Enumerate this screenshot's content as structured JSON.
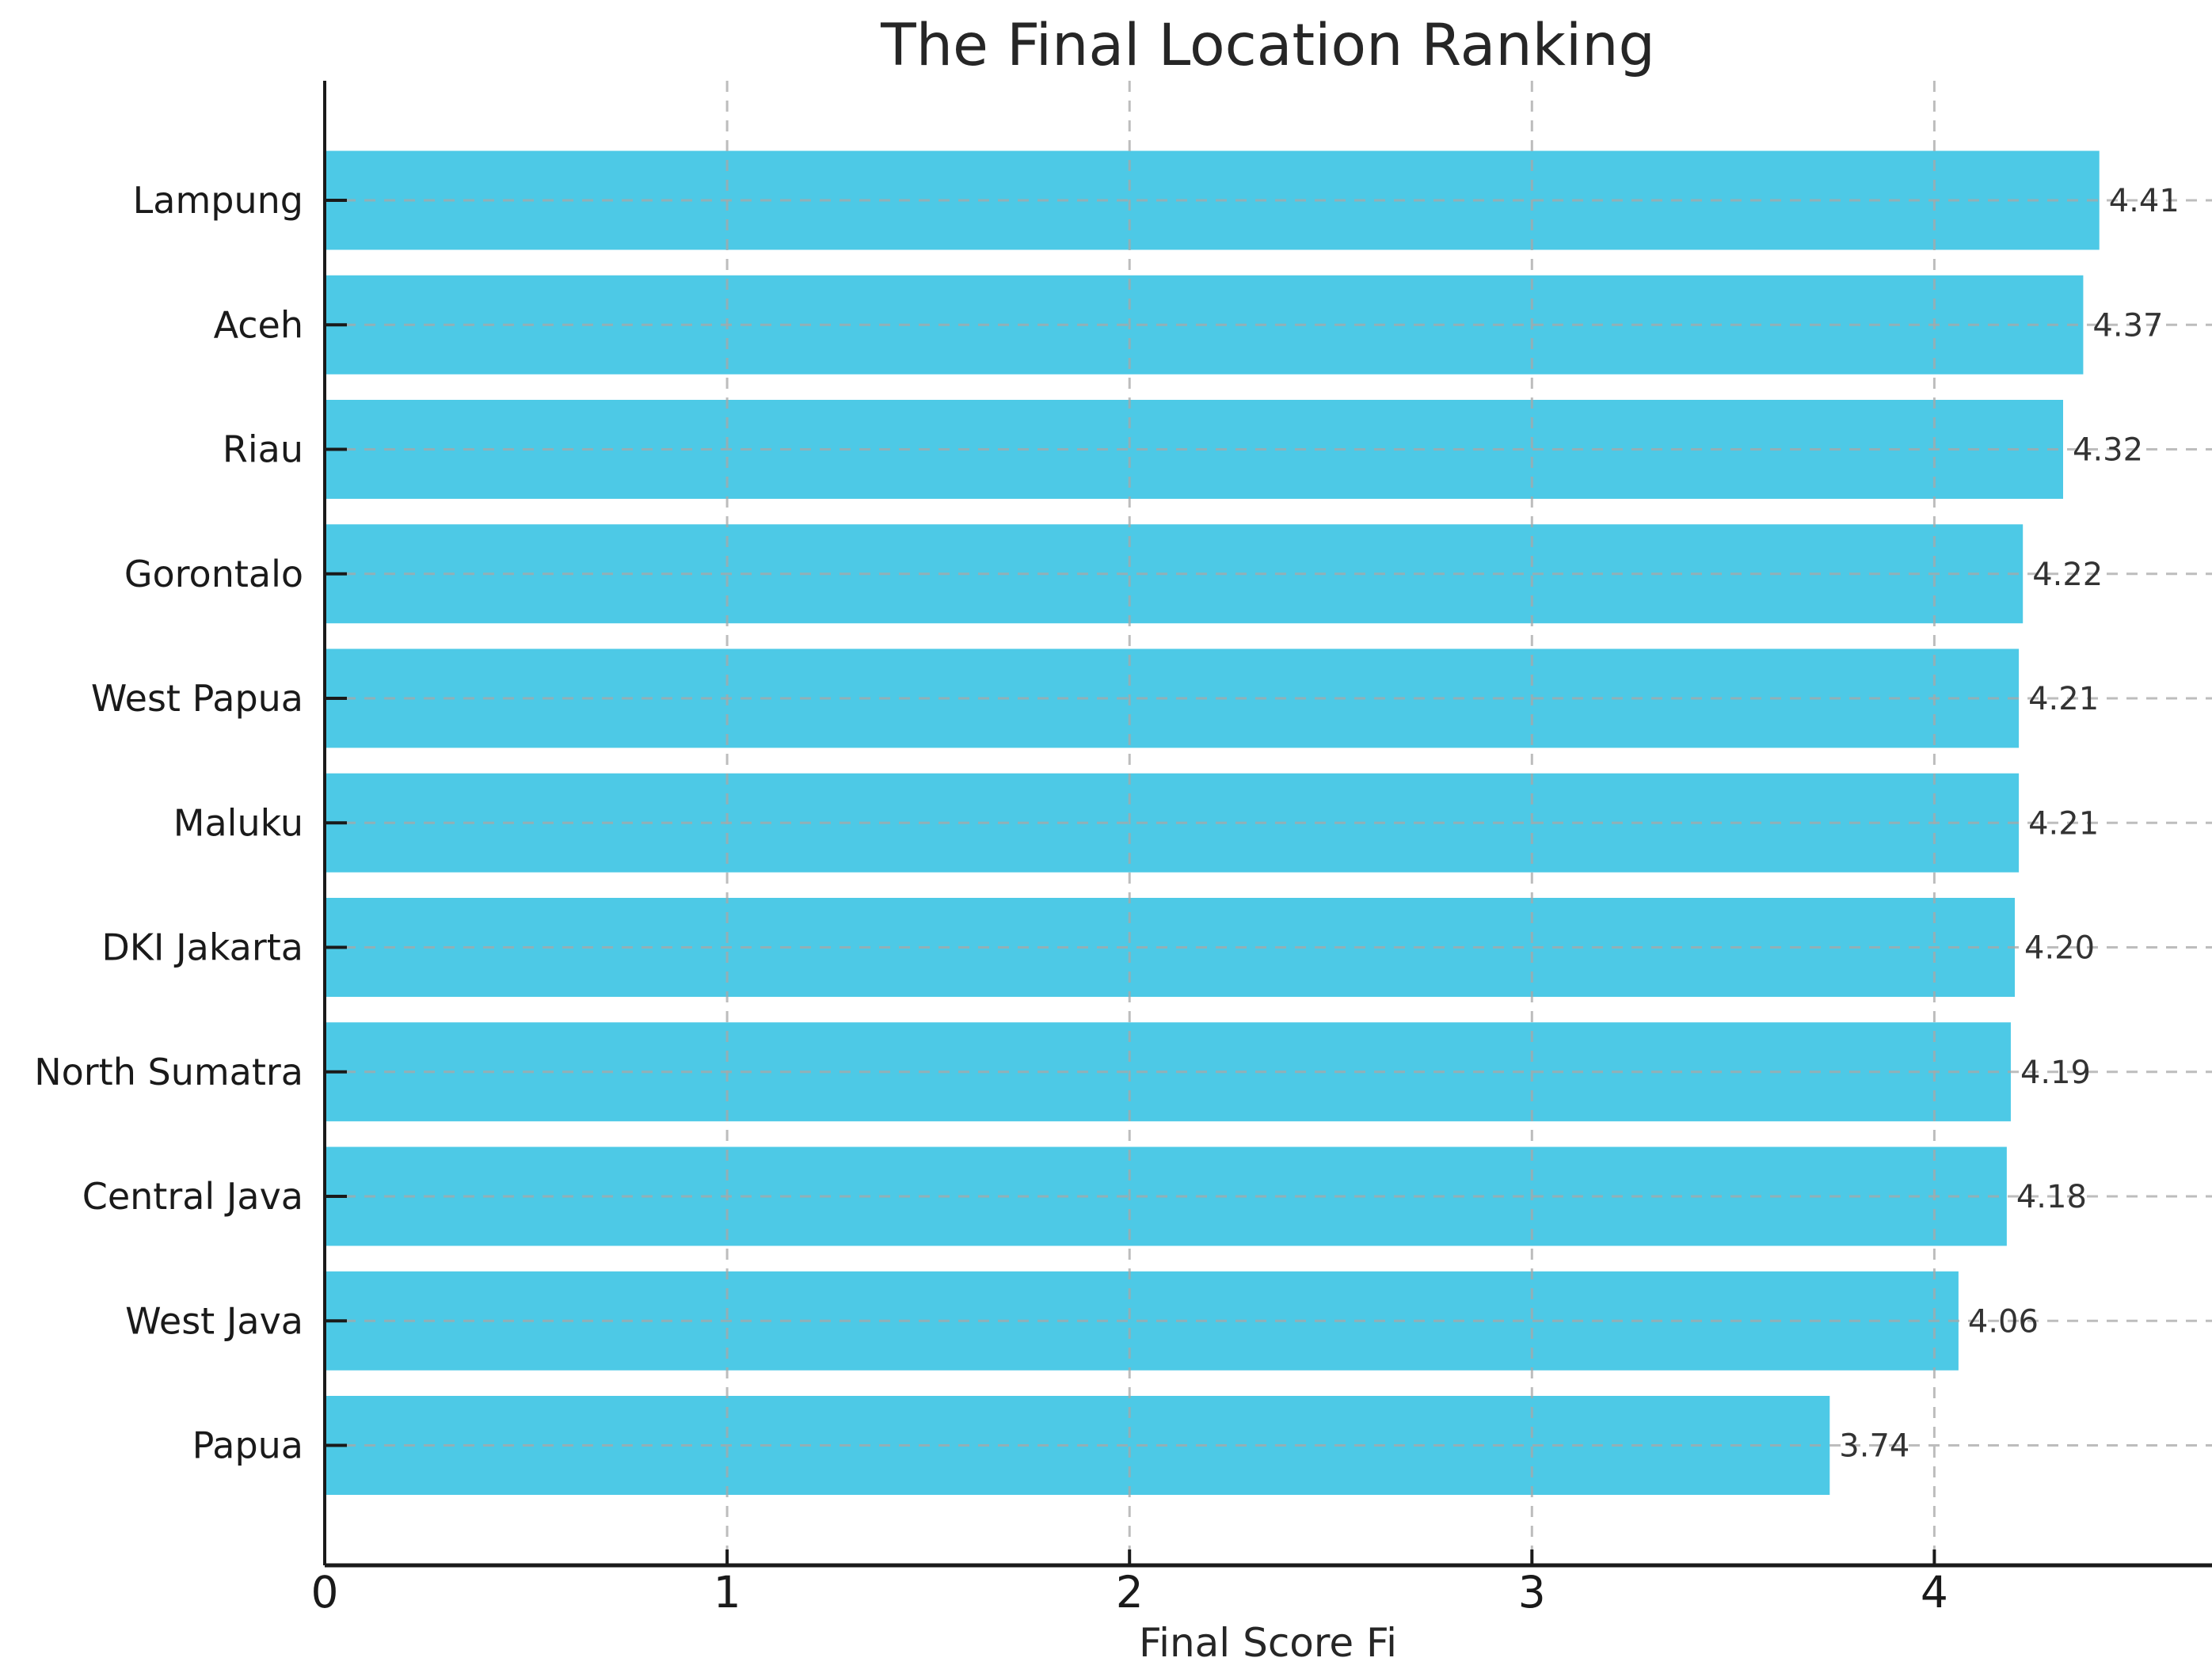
{
  "chart_data": {
    "type": "bar",
    "orientation": "horizontal",
    "title": "The Final Location Ranking",
    "xlabel": "Final Score Fi",
    "categories": [
      "Lampung",
      "Aceh",
      "Riau",
      "Gorontalo",
      "West Papua",
      "Maluku",
      "DKI Jakarta",
      "North Sumatra",
      "Central Java",
      "West Java",
      "Papua"
    ],
    "values": [
      4.41,
      4.37,
      4.32,
      4.22,
      4.21,
      4.21,
      4.2,
      4.19,
      4.18,
      4.06,
      3.74
    ],
    "value_labels": [
      "4.41",
      "4.37",
      "4.32",
      "4.22",
      "4.21",
      "4.21",
      "4.20",
      "4.19",
      "4.18",
      "4.06",
      "3.74"
    ],
    "xticks": [
      "0",
      "1",
      "2",
      "3",
      "4"
    ],
    "xtick_values": [
      0,
      1,
      2,
      3,
      4
    ],
    "xlim": [
      0,
      4.69
    ],
    "bar_color": "#4DC9E6",
    "grid_color": "#a8a8a8",
    "grid_style": "dashed",
    "axis_color": "#1a1a1a",
    "text_color": "#1a1a1a",
    "value_label_color": "#333333",
    "background": "#ffffff",
    "legend": "none"
  }
}
